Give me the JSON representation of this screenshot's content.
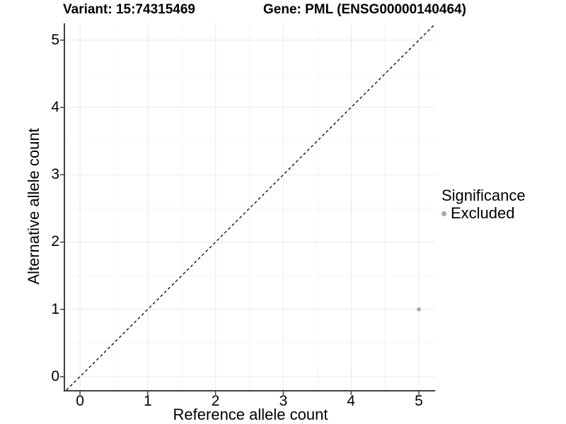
{
  "header": {
    "variant_title": "Variant: 15:74315469",
    "gene_title": "Gene: PML (ENSG00000140464)"
  },
  "chart_data": {
    "type": "scatter",
    "xlabel": "Reference allele count",
    "ylabel": "Alternative allele count",
    "xlim": [
      -0.22,
      5.24
    ],
    "ylim": [
      -0.2,
      5.25
    ],
    "x_ticks": [
      0,
      1,
      2,
      3,
      4,
      5
    ],
    "y_ticks": [
      0,
      1,
      2,
      3,
      4,
      5
    ],
    "minor_ticks": [
      0.5,
      1.5,
      2.5,
      3.5,
      4.5
    ],
    "grid": "major+minor",
    "identity_line": {
      "style": "dashed",
      "equation": "y = x",
      "color": "#000000"
    },
    "series": [
      {
        "name": "Excluded",
        "color": "#a9a9a9",
        "points": [
          {
            "x": 5,
            "y": 1
          }
        ]
      }
    ],
    "legend": {
      "title": "Significance",
      "position": "right",
      "entries": [
        {
          "label": "Excluded",
          "color": "#a9a9a9"
        }
      ]
    }
  },
  "colors": {
    "background": "#ffffff",
    "grid_major": "#e8e8e8",
    "grid_minor": "#f4f4f4",
    "axis_line": "#404040",
    "point": "#a9a9a9",
    "text": "#000000"
  }
}
